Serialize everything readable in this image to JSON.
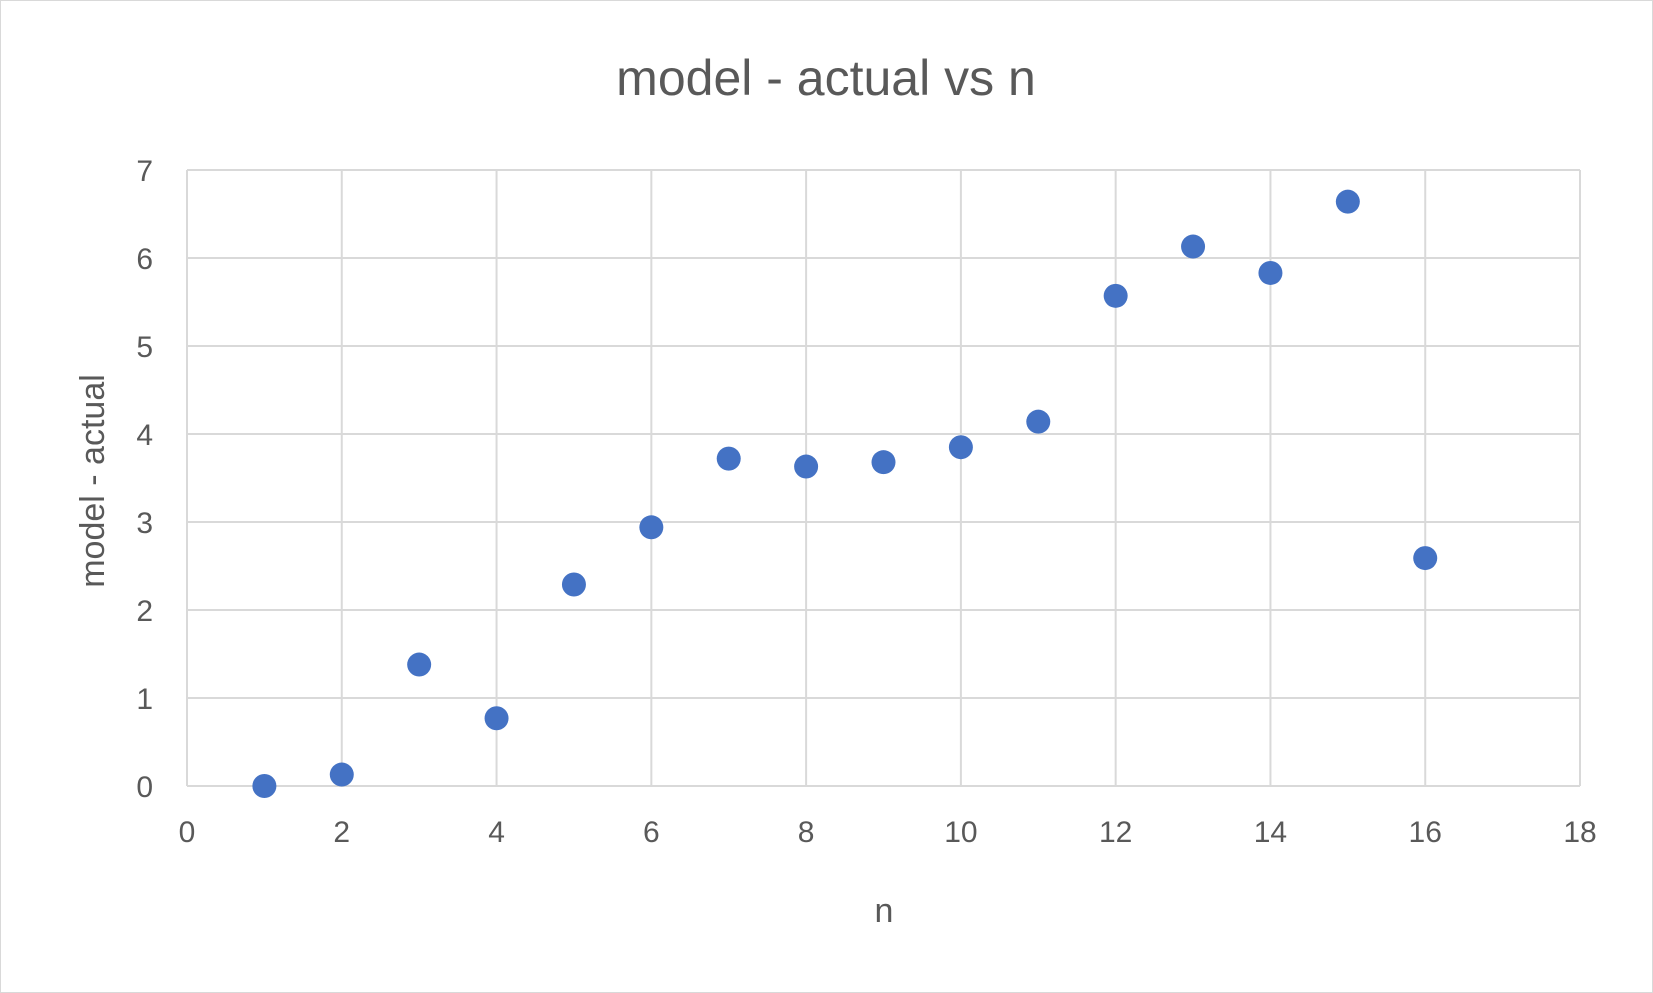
{
  "chart_data": {
    "type": "scatter",
    "title": "model - actual vs n",
    "xlabel": "n",
    "ylabel": "model - actual",
    "xlim": [
      0,
      18
    ],
    "ylim": [
      0,
      7
    ],
    "xticks": [
      "0",
      "2",
      "4",
      "6",
      "8",
      "10",
      "12",
      "14",
      "16",
      "18"
    ],
    "yticks": [
      "0",
      "1",
      "2",
      "3",
      "4",
      "5",
      "6",
      "7"
    ],
    "grid": true,
    "legend": "none",
    "color": "#4472c4",
    "series": [
      {
        "x": [
          1,
          2,
          3,
          4,
          5,
          6,
          7,
          8,
          9,
          10,
          11,
          12,
          13,
          14,
          15,
          16
        ],
        "y": [
          0.0,
          0.13,
          1.38,
          0.77,
          2.29,
          2.94,
          3.72,
          3.63,
          3.68,
          3.85,
          4.14,
          5.57,
          6.13,
          5.83,
          6.64,
          2.59
        ]
      }
    ]
  }
}
